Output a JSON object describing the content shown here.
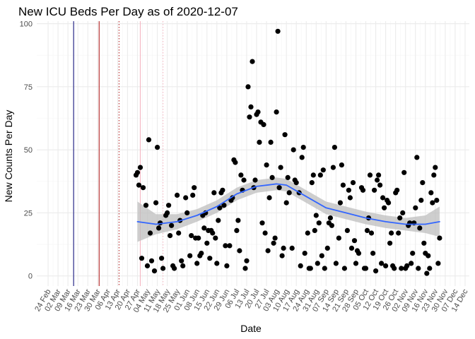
{
  "chart_data": {
    "type": "scatter",
    "title": "New ICU Beds Per Day as of 2020-12-07",
    "xlabel": "Date",
    "ylabel": "New Counts Per Day",
    "xlim": [
      "2020-02-16",
      "2020-12-17"
    ],
    "ylim": [
      -4,
      101
    ],
    "grid": true,
    "y_ticks": [
      0,
      25,
      50,
      75,
      100
    ],
    "x_ticks": [
      {
        "date": "2020-02-24",
        "label": "24 Feb"
      },
      {
        "date": "2020-03-02",
        "label": "02 Mar"
      },
      {
        "date": "2020-03-09",
        "label": "09 Mar"
      },
      {
        "date": "2020-03-16",
        "label": "16 Mar"
      },
      {
        "date": "2020-03-23",
        "label": "23 Mar"
      },
      {
        "date": "2020-03-30",
        "label": "30 Mar"
      },
      {
        "date": "2020-04-06",
        "label": "06 Apr"
      },
      {
        "date": "2020-04-13",
        "label": "13 Apr"
      },
      {
        "date": "2020-04-20",
        "label": "20 Apr"
      },
      {
        "date": "2020-04-27",
        "label": "27 Apr"
      },
      {
        "date": "2020-05-04",
        "label": "04 May"
      },
      {
        "date": "2020-05-11",
        "label": "11 May"
      },
      {
        "date": "2020-05-18",
        "label": "18 May"
      },
      {
        "date": "2020-05-25",
        "label": "25 May"
      },
      {
        "date": "2020-06-01",
        "label": "01 Jun"
      },
      {
        "date": "2020-06-08",
        "label": "08 Jun"
      },
      {
        "date": "2020-06-15",
        "label": "15 Jun"
      },
      {
        "date": "2020-06-22",
        "label": "22 Jun"
      },
      {
        "date": "2020-06-29",
        "label": "29 Jun"
      },
      {
        "date": "2020-07-06",
        "label": "06 Jul"
      },
      {
        "date": "2020-07-13",
        "label": "13 Jul"
      },
      {
        "date": "2020-07-20",
        "label": "20 Jul"
      },
      {
        "date": "2020-07-27",
        "label": "27 Jul"
      },
      {
        "date": "2020-08-03",
        "label": "03 Aug"
      },
      {
        "date": "2020-08-10",
        "label": "10 Aug"
      },
      {
        "date": "2020-08-17",
        "label": "17 Aug"
      },
      {
        "date": "2020-08-24",
        "label": "24 Aug"
      },
      {
        "date": "2020-08-31",
        "label": "31 Aug"
      },
      {
        "date": "2020-09-07",
        "label": "07 Sep"
      },
      {
        "date": "2020-09-14",
        "label": "14 Sep"
      },
      {
        "date": "2020-09-21",
        "label": "21 Sep"
      },
      {
        "date": "2020-09-28",
        "label": "28 Sep"
      },
      {
        "date": "2020-10-05",
        "label": "05 Oct"
      },
      {
        "date": "2020-10-12",
        "label": "12 Oct"
      },
      {
        "date": "2020-10-19",
        "label": "19 Oct"
      },
      {
        "date": "2020-10-26",
        "label": "26 Oct"
      },
      {
        "date": "2020-11-02",
        "label": "02 Nov"
      },
      {
        "date": "2020-11-09",
        "label": "09 Nov"
      },
      {
        "date": "2020-11-16",
        "label": "16 Nov"
      },
      {
        "date": "2020-11-23",
        "label": "23 Nov"
      },
      {
        "date": "2020-11-30",
        "label": "30 Nov"
      },
      {
        "date": "2020-12-07",
        "label": "07 Dec"
      },
      {
        "date": "2020-12-14",
        "label": "14 Dec"
      }
    ],
    "vlines": [
      {
        "date": "2020-03-13",
        "color": "#1a1a80",
        "style": "solid"
      },
      {
        "date": "2020-03-31",
        "color": "#b22222",
        "style": "solid"
      },
      {
        "date": "2020-04-14",
        "color": "#b22222",
        "style": "dotted"
      },
      {
        "date": "2020-04-29",
        "color": "#f4b6c2",
        "style": "solid"
      },
      {
        "date": "2020-05-15",
        "color": "#f4b6c2",
        "style": "dotted"
      }
    ],
    "colors": {
      "points": "#000000",
      "smooth_line": "#3366ff",
      "ribbon": "#bdbdbd",
      "grid_major": "#ebebeb",
      "grid_minor": "#f5f5f5"
    },
    "points": [
      [
        "2020-04-26",
        40
      ],
      [
        "2020-04-27",
        41
      ],
      [
        "2020-04-28",
        36
      ],
      [
        "2020-04-29",
        43
      ],
      [
        "2020-04-30",
        7
      ],
      [
        "2020-05-01",
        35
      ],
      [
        "2020-05-03",
        28
      ],
      [
        "2020-05-04",
        4
      ],
      [
        "2020-05-05",
        54
      ],
      [
        "2020-05-06",
        17
      ],
      [
        "2020-05-07",
        6
      ],
      [
        "2020-05-09",
        2
      ],
      [
        "2020-05-10",
        29
      ],
      [
        "2020-05-11",
        51
      ],
      [
        "2020-05-12",
        19
      ],
      [
        "2020-05-13",
        21
      ],
      [
        "2020-05-14",
        7
      ],
      [
        "2020-05-15",
        3
      ],
      [
        "2020-05-17",
        24
      ],
      [
        "2020-05-18",
        25
      ],
      [
        "2020-05-19",
        28
      ],
      [
        "2020-05-20",
        16
      ],
      [
        "2020-05-21",
        20
      ],
      [
        "2020-05-22",
        4
      ],
      [
        "2020-05-23",
        3
      ],
      [
        "2020-05-25",
        32
      ],
      [
        "2020-05-26",
        17
      ],
      [
        "2020-05-27",
        22
      ],
      [
        "2020-05-28",
        6
      ],
      [
        "2020-05-29",
        4
      ],
      [
        "2020-05-31",
        31
      ],
      [
        "2020-06-01",
        25
      ],
      [
        "2020-06-03",
        8
      ],
      [
        "2020-06-04",
        16
      ],
      [
        "2020-06-05",
        32
      ],
      [
        "2020-06-06",
        35
      ],
      [
        "2020-06-07",
        15
      ],
      [
        "2020-06-08",
        5
      ],
      [
        "2020-06-09",
        15
      ],
      [
        "2020-06-10",
        8
      ],
      [
        "2020-06-11",
        9
      ],
      [
        "2020-06-12",
        24
      ],
      [
        "2020-06-13",
        19
      ],
      [
        "2020-06-14",
        25
      ],
      [
        "2020-06-15",
        13
      ],
      [
        "2020-06-16",
        18
      ],
      [
        "2020-06-17",
        7
      ],
      [
        "2020-06-18",
        18
      ],
      [
        "2020-06-19",
        17
      ],
      [
        "2020-06-20",
        33
      ],
      [
        "2020-06-21",
        15
      ],
      [
        "2020-06-22",
        5
      ],
      [
        "2020-06-23",
        22
      ],
      [
        "2020-06-24",
        27
      ],
      [
        "2020-06-25",
        33
      ],
      [
        "2020-06-26",
        34
      ],
      [
        "2020-06-27",
        28
      ],
      [
        "2020-06-28",
        12
      ],
      [
        "2020-06-29",
        4
      ],
      [
        "2020-07-01",
        12
      ],
      [
        "2020-07-02",
        30
      ],
      [
        "2020-07-03",
        31
      ],
      [
        "2020-07-04",
        46
      ],
      [
        "2020-07-05",
        45
      ],
      [
        "2020-07-06",
        18
      ],
      [
        "2020-07-07",
        22
      ],
      [
        "2020-07-08",
        10
      ],
      [
        "2020-07-09",
        40
      ],
      [
        "2020-07-10",
        34
      ],
      [
        "2020-07-11",
        38
      ],
      [
        "2020-07-12",
        3
      ],
      [
        "2020-07-13",
        6
      ],
      [
        "2020-07-14",
        75
      ],
      [
        "2020-07-15",
        63
      ],
      [
        "2020-07-16",
        67
      ],
      [
        "2020-07-17",
        85
      ],
      [
        "2020-07-18",
        35
      ],
      [
        "2020-07-19",
        38
      ],
      [
        "2020-07-20",
        64
      ],
      [
        "2020-07-21",
        65
      ],
      [
        "2020-07-22",
        53
      ],
      [
        "2020-07-23",
        61
      ],
      [
        "2020-07-24",
        21
      ],
      [
        "2020-07-25",
        60
      ],
      [
        "2020-07-26",
        17
      ],
      [
        "2020-07-27",
        44
      ],
      [
        "2020-07-28",
        10
      ],
      [
        "2020-07-29",
        31
      ],
      [
        "2020-07-30",
        53
      ],
      [
        "2020-07-31",
        39
      ],
      [
        "2020-08-01",
        13
      ],
      [
        "2020-08-02",
        15
      ],
      [
        "2020-08-03",
        65
      ],
      [
        "2020-08-04",
        97
      ],
      [
        "2020-08-05",
        35
      ],
      [
        "2020-08-06",
        43
      ],
      [
        "2020-08-07",
        8
      ],
      [
        "2020-08-08",
        11
      ],
      [
        "2020-08-09",
        56
      ],
      [
        "2020-08-10",
        29
      ],
      [
        "2020-08-11",
        39
      ],
      [
        "2020-08-12",
        33
      ],
      [
        "2020-08-14",
        11
      ],
      [
        "2020-08-15",
        50
      ],
      [
        "2020-08-16",
        38
      ],
      [
        "2020-08-17",
        37
      ],
      [
        "2020-08-19",
        33
      ],
      [
        "2020-08-20",
        4
      ],
      [
        "2020-08-21",
        47
      ],
      [
        "2020-08-22",
        51
      ],
      [
        "2020-08-23",
        9
      ],
      [
        "2020-08-25",
        17
      ],
      [
        "2020-08-26",
        3
      ],
      [
        "2020-08-27",
        3
      ],
      [
        "2020-08-28",
        37
      ],
      [
        "2020-08-29",
        40
      ],
      [
        "2020-08-30",
        18
      ],
      [
        "2020-08-31",
        24
      ],
      [
        "2020-09-01",
        5
      ],
      [
        "2020-09-02",
        21
      ],
      [
        "2020-09-03",
        40
      ],
      [
        "2020-09-04",
        8
      ],
      [
        "2020-09-05",
        42
      ],
      [
        "2020-09-06",
        3
      ],
      [
        "2020-09-08",
        11
      ],
      [
        "2020-09-09",
        21
      ],
      [
        "2020-09-10",
        23
      ],
      [
        "2020-09-11",
        20
      ],
      [
        "2020-09-12",
        43
      ],
      [
        "2020-09-13",
        51
      ],
      [
        "2020-09-14",
        5
      ],
      [
        "2020-09-16",
        15
      ],
      [
        "2020-09-17",
        29
      ],
      [
        "2020-09-18",
        44
      ],
      [
        "2020-09-19",
        36
      ],
      [
        "2020-09-20",
        3
      ],
      [
        "2020-09-22",
        18
      ],
      [
        "2020-09-23",
        34
      ],
      [
        "2020-09-24",
        31
      ],
      [
        "2020-09-25",
        11
      ],
      [
        "2020-09-26",
        37
      ],
      [
        "2020-09-27",
        14
      ],
      [
        "2020-09-28",
        5
      ],
      [
        "2020-09-29",
        10
      ],
      [
        "2020-09-30",
        9
      ],
      [
        "2020-10-02",
        35
      ],
      [
        "2020-10-03",
        34
      ],
      [
        "2020-10-04",
        3
      ],
      [
        "2020-10-05",
        3
      ],
      [
        "2020-10-06",
        18
      ],
      [
        "2020-10-07",
        23
      ],
      [
        "2020-10-08",
        40
      ],
      [
        "2020-10-09",
        17
      ],
      [
        "2020-10-10",
        9
      ],
      [
        "2020-10-11",
        34
      ],
      [
        "2020-10-12",
        2
      ],
      [
        "2020-10-13",
        38
      ],
      [
        "2020-10-14",
        40
      ],
      [
        "2020-10-15",
        36
      ],
      [
        "2020-10-16",
        5
      ],
      [
        "2020-10-17",
        31
      ],
      [
        "2020-10-18",
        27
      ],
      [
        "2020-10-19",
        4
      ],
      [
        "2020-10-20",
        30
      ],
      [
        "2020-10-21",
        29
      ],
      [
        "2020-10-22",
        13
      ],
      [
        "2020-10-23",
        17
      ],
      [
        "2020-10-24",
        4
      ],
      [
        "2020-10-25",
        3
      ],
      [
        "2020-10-26",
        33
      ],
      [
        "2020-10-27",
        34
      ],
      [
        "2020-10-28",
        17
      ],
      [
        "2020-10-29",
        23
      ],
      [
        "2020-10-30",
        3
      ],
      [
        "2020-10-31",
        25
      ],
      [
        "2020-11-01",
        41
      ],
      [
        "2020-11-02",
        3
      ],
      [
        "2020-11-03",
        4
      ],
      [
        "2020-11-04",
        20
      ],
      [
        "2020-11-05",
        21
      ],
      [
        "2020-11-06",
        5
      ],
      [
        "2020-11-07",
        9
      ],
      [
        "2020-11-08",
        21
      ],
      [
        "2020-11-09",
        27
      ],
      [
        "2020-11-10",
        47
      ],
      [
        "2020-11-11",
        3
      ],
      [
        "2020-11-12",
        19
      ],
      [
        "2020-11-13",
        30
      ],
      [
        "2020-11-14",
        37
      ],
      [
        "2020-11-15",
        13
      ],
      [
        "2020-11-16",
        9
      ],
      [
        "2020-11-17",
        1
      ],
      [
        "2020-11-18",
        8
      ],
      [
        "2020-11-19",
        3
      ],
      [
        "2020-11-20",
        33
      ],
      [
        "2020-11-21",
        29
      ],
      [
        "2020-11-22",
        40
      ],
      [
        "2020-11-23",
        43
      ],
      [
        "2020-11-24",
        30
      ],
      [
        "2020-11-25",
        5
      ],
      [
        "2020-11-26",
        15
      ]
    ],
    "smooth": [
      {
        "date": "2020-04-27",
        "y": 21.5,
        "lo": 13.5,
        "hi": 29.5
      },
      {
        "date": "2020-05-10",
        "y": 20.5,
        "lo": 16.5,
        "hi": 24.5
      },
      {
        "date": "2020-05-25",
        "y": 21.5,
        "lo": 18.5,
        "hi": 24.5
      },
      {
        "date": "2020-06-08",
        "y": 24.0,
        "lo": 21.5,
        "hi": 26.5
      },
      {
        "date": "2020-06-22",
        "y": 27.5,
        "lo": 25.0,
        "hi": 30.0
      },
      {
        "date": "2020-07-06",
        "y": 32.5,
        "lo": 30.0,
        "hi": 35.0
      },
      {
        "date": "2020-07-20",
        "y": 35.5,
        "lo": 33.0,
        "hi": 38.0
      },
      {
        "date": "2020-08-03",
        "y": 36.5,
        "lo": 34.0,
        "hi": 39.0
      },
      {
        "date": "2020-08-10",
        "y": 36.0,
        "lo": 33.5,
        "hi": 38.5
      },
      {
        "date": "2020-08-24",
        "y": 31.5,
        "lo": 29.0,
        "hi": 34.0
      },
      {
        "date": "2020-09-07",
        "y": 27.0,
        "lo": 24.5,
        "hi": 29.5
      },
      {
        "date": "2020-09-21",
        "y": 25.0,
        "lo": 22.5,
        "hi": 27.5
      },
      {
        "date": "2020-10-05",
        "y": 23.0,
        "lo": 20.5,
        "hi": 25.5
      },
      {
        "date": "2020-10-19",
        "y": 21.5,
        "lo": 19.0,
        "hi": 24.0
      },
      {
        "date": "2020-11-02",
        "y": 20.5,
        "lo": 18.0,
        "hi": 23.0
      },
      {
        "date": "2020-11-16",
        "y": 20.5,
        "lo": 17.0,
        "hi": 24.0
      },
      {
        "date": "2020-11-26",
        "y": 21.5,
        "lo": 15.5,
        "hi": 27.5
      }
    ]
  }
}
